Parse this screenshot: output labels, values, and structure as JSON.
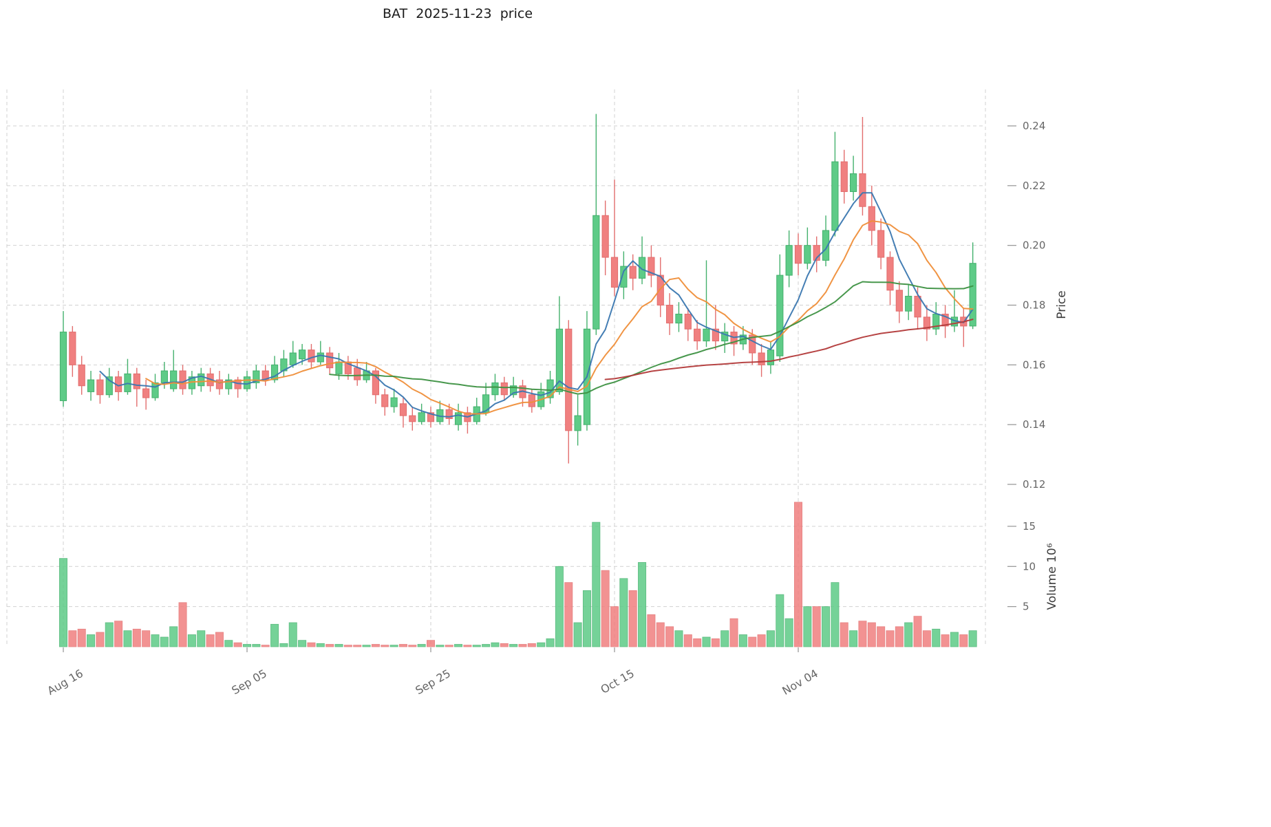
{
  "colors": {
    "up": "#5ecb87",
    "up_edge": "#43b06c",
    "down": "#f08080",
    "down_edge": "#e26d6d",
    "grid": "#cccccc",
    "tick_text": "#666666",
    "axis_label_text": "#3c3c3c"
  },
  "chart_data": {
    "type": "candlestick",
    "title": "BAT  2025-11-23  price",
    "date_range": [
      "2025-08-16",
      "2025-11-23"
    ],
    "xlabel": "",
    "ylabel_price": "Price",
    "ylabel_volume": "Volume 10⁶",
    "grid": true,
    "price_ticks": [
      0.12,
      0.14,
      0.16,
      0.18,
      0.2,
      0.22,
      0.24
    ],
    "volume_ticks_millions": [
      5,
      10,
      15
    ],
    "x_ticks": [
      {
        "label": "Aug 16",
        "index": 0
      },
      {
        "label": "Sep 05",
        "index": 20
      },
      {
        "label": "Sep 25",
        "index": 40
      },
      {
        "label": "Oct 15",
        "index": 60
      },
      {
        "label": "Nov 04",
        "index": 80
      }
    ],
    "ylim_price": [
      0.115,
      0.252
    ],
    "ylim_volume_millions": [
      0,
      20
    ],
    "moving_averages": [
      {
        "name": "ma5",
        "window": 5,
        "color": "#3a77b0"
      },
      {
        "name": "ma10",
        "window": 10,
        "color": "#ef8e39"
      },
      {
        "name": "ma30",
        "window": 30,
        "color": "#3d9142"
      },
      {
        "name": "ma60",
        "window": 60,
        "color": "#b23939"
      }
    ],
    "series": {
      "open": [
        0.148,
        0.171,
        0.16,
        0.151,
        0.155,
        0.15,
        0.156,
        0.151,
        0.157,
        0.152,
        0.149,
        0.154,
        0.152,
        0.158,
        0.152,
        0.153,
        0.157,
        0.155,
        0.152,
        0.155,
        0.152,
        0.154,
        0.158,
        0.155,
        0.158,
        0.16,
        0.162,
        0.165,
        0.161,
        0.164,
        0.157,
        0.161,
        0.159,
        0.155,
        0.158,
        0.15,
        0.146,
        0.147,
        0.143,
        0.141,
        0.144,
        0.141,
        0.145,
        0.14,
        0.144,
        0.141,
        0.144,
        0.15,
        0.154,
        0.15,
        0.153,
        0.15,
        0.146,
        0.149,
        0.151,
        0.172,
        0.138,
        0.14,
        0.172,
        0.21,
        0.196,
        0.186,
        0.193,
        0.189,
        0.196,
        0.19,
        0.18,
        0.174,
        0.177,
        0.172,
        0.168,
        0.172,
        0.168,
        0.171,
        0.167,
        0.17,
        0.164,
        0.16,
        0.163,
        0.19,
        0.2,
        0.194,
        0.2,
        0.195,
        0.205,
        0.228,
        0.218,
        0.224,
        0.213,
        0.205,
        0.196,
        0.185,
        0.178,
        0.183,
        0.176,
        0.172,
        0.177,
        0.173,
        0.176,
        0.173
      ],
      "high": [
        0.178,
        0.173,
        0.163,
        0.158,
        0.157,
        0.159,
        0.158,
        0.162,
        0.159,
        0.155,
        0.157,
        0.161,
        0.165,
        0.16,
        0.158,
        0.159,
        0.159,
        0.158,
        0.157,
        0.156,
        0.158,
        0.16,
        0.16,
        0.163,
        0.165,
        0.168,
        0.167,
        0.167,
        0.168,
        0.166,
        0.164,
        0.163,
        0.162,
        0.161,
        0.159,
        0.152,
        0.152,
        0.149,
        0.146,
        0.147,
        0.146,
        0.148,
        0.147,
        0.147,
        0.146,
        0.149,
        0.154,
        0.157,
        0.156,
        0.156,
        0.155,
        0.152,
        0.154,
        0.158,
        0.183,
        0.175,
        0.15,
        0.178,
        0.244,
        0.215,
        0.222,
        0.198,
        0.197,
        0.203,
        0.2,
        0.196,
        0.184,
        0.181,
        0.179,
        0.175,
        0.195,
        0.18,
        0.174,
        0.173,
        0.173,
        0.172,
        0.167,
        0.168,
        0.197,
        0.205,
        0.204,
        0.206,
        0.203,
        0.21,
        0.238,
        0.232,
        0.23,
        0.243,
        0.22,
        0.209,
        0.198,
        0.188,
        0.187,
        0.186,
        0.18,
        0.181,
        0.18,
        0.185,
        0.179,
        0.201
      ],
      "low": [
        0.146,
        0.156,
        0.15,
        0.148,
        0.147,
        0.149,
        0.148,
        0.15,
        0.146,
        0.145,
        0.148,
        0.152,
        0.151,
        0.15,
        0.15,
        0.151,
        0.151,
        0.15,
        0.15,
        0.149,
        0.151,
        0.152,
        0.153,
        0.154,
        0.156,
        0.159,
        0.16,
        0.159,
        0.16,
        0.157,
        0.155,
        0.155,
        0.153,
        0.154,
        0.147,
        0.143,
        0.144,
        0.139,
        0.138,
        0.14,
        0.139,
        0.14,
        0.14,
        0.138,
        0.137,
        0.14,
        0.143,
        0.148,
        0.148,
        0.149,
        0.146,
        0.144,
        0.145,
        0.147,
        0.15,
        0.127,
        0.133,
        0.138,
        0.17,
        0.19,
        0.183,
        0.182,
        0.185,
        0.187,
        0.186,
        0.176,
        0.17,
        0.171,
        0.168,
        0.165,
        0.166,
        0.165,
        0.164,
        0.163,
        0.165,
        0.16,
        0.156,
        0.157,
        0.161,
        0.186,
        0.19,
        0.192,
        0.191,
        0.193,
        0.203,
        0.214,
        0.215,
        0.21,
        0.2,
        0.192,
        0.18,
        0.174,
        0.175,
        0.172,
        0.168,
        0.17,
        0.169,
        0.171,
        0.166,
        0.172
      ],
      "close": [
        0.171,
        0.16,
        0.153,
        0.155,
        0.15,
        0.156,
        0.151,
        0.157,
        0.152,
        0.149,
        0.154,
        0.158,
        0.158,
        0.152,
        0.156,
        0.157,
        0.153,
        0.152,
        0.155,
        0.152,
        0.156,
        0.158,
        0.155,
        0.16,
        0.162,
        0.164,
        0.165,
        0.161,
        0.164,
        0.159,
        0.161,
        0.157,
        0.155,
        0.158,
        0.15,
        0.146,
        0.149,
        0.143,
        0.141,
        0.144,
        0.141,
        0.145,
        0.142,
        0.144,
        0.141,
        0.146,
        0.15,
        0.154,
        0.15,
        0.153,
        0.149,
        0.146,
        0.151,
        0.155,
        0.172,
        0.138,
        0.143,
        0.172,
        0.21,
        0.196,
        0.186,
        0.193,
        0.189,
        0.196,
        0.19,
        0.18,
        0.174,
        0.177,
        0.172,
        0.168,
        0.172,
        0.168,
        0.171,
        0.167,
        0.17,
        0.164,
        0.16,
        0.165,
        0.19,
        0.2,
        0.194,
        0.2,
        0.195,
        0.205,
        0.228,
        0.218,
        0.224,
        0.213,
        0.205,
        0.196,
        0.185,
        0.178,
        0.183,
        0.176,
        0.172,
        0.177,
        0.173,
        0.176,
        0.173,
        0.194
      ],
      "volume_millions": [
        11.0,
        2.0,
        2.2,
        1.5,
        1.8,
        3.0,
        3.2,
        2.0,
        2.2,
        2.0,
        1.5,
        1.2,
        2.5,
        5.5,
        1.5,
        2.0,
        1.5,
        1.8,
        0.8,
        0.5,
        0.3,
        0.3,
        0.2,
        2.8,
        0.4,
        3.0,
        0.8,
        0.5,
        0.4,
        0.3,
        0.3,
        0.2,
        0.2,
        0.2,
        0.3,
        0.2,
        0.2,
        0.3,
        0.2,
        0.3,
        0.8,
        0.2,
        0.2,
        0.3,
        0.2,
        0.2,
        0.3,
        0.5,
        0.4,
        0.3,
        0.3,
        0.4,
        0.5,
        1.0,
        10.0,
        8.0,
        3.0,
        7.0,
        15.5,
        9.5,
        5.0,
        8.5,
        7.0,
        10.5,
        4.0,
        3.0,
        2.5,
        2.0,
        1.5,
        1.0,
        1.2,
        1.0,
        2.0,
        3.5,
        1.5,
        1.2,
        1.5,
        2.0,
        6.5,
        3.5,
        18.0,
        5.0,
        5.0,
        5.0,
        8.0,
        3.0,
        2.0,
        3.2,
        3.0,
        2.5,
        2.0,
        2.5,
        3.0,
        3.8,
        2.0,
        2.2,
        1.5,
        1.8,
        1.5,
        2.0
      ]
    }
  }
}
